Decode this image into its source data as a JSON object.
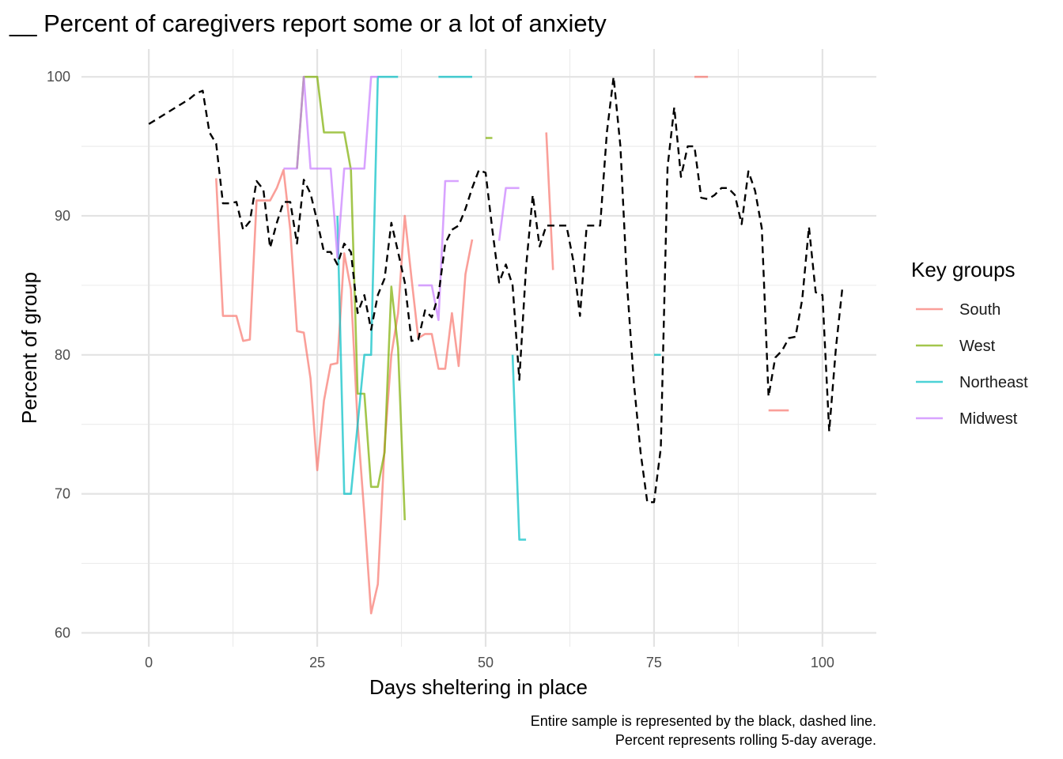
{
  "chart_data": {
    "type": "line",
    "title": "__ Percent of caregivers report some or a lot of anxiety",
    "xlabel": "Days sheltering in place",
    "ylabel": "Percent of group",
    "xlim": [
      -10,
      108
    ],
    "ylim": [
      59,
      102
    ],
    "x_ticks": [
      0,
      25,
      50,
      75,
      100
    ],
    "y_ticks": [
      60,
      70,
      80,
      90,
      100
    ],
    "grid": true,
    "legend": {
      "title": "Key groups",
      "position": "right",
      "entries": [
        "South",
        "West",
        "Northeast",
        "Midwest"
      ]
    },
    "caption": [
      "Entire sample is represented by the black, dashed line.",
      "Percent represents rolling 5-day average."
    ],
    "overall": {
      "color": "#000000",
      "dashed": true,
      "segments": [
        [
          [
            0,
            96.6
          ],
          [
            1,
            96.9
          ],
          [
            2,
            97.2
          ],
          [
            3,
            97.5
          ],
          [
            4,
            97.8
          ],
          [
            5,
            98.1
          ],
          [
            6,
            98.4
          ],
          [
            7,
            98.8
          ],
          [
            8,
            99.0
          ],
          [
            9,
            96.0
          ],
          [
            10,
            95.2
          ],
          [
            11,
            90.9
          ],
          [
            12,
            90.9
          ],
          [
            13,
            91.0
          ],
          [
            14,
            89.0
          ],
          [
            15,
            89.6
          ],
          [
            16,
            92.5
          ],
          [
            17,
            91.9
          ],
          [
            18,
            87.7
          ],
          [
            19,
            89.5
          ],
          [
            20,
            91.0
          ],
          [
            21,
            91.0
          ],
          [
            22,
            88.0
          ],
          [
            23,
            92.6
          ],
          [
            24,
            91.6
          ],
          [
            25,
            89.6
          ],
          [
            26,
            87.4
          ],
          [
            27,
            87.4
          ],
          [
            28,
            86.5
          ],
          [
            29,
            88.0
          ],
          [
            30,
            87.4
          ],
          [
            31,
            83.0
          ],
          [
            32,
            84.3
          ],
          [
            33,
            81.8
          ],
          [
            34,
            84.3
          ],
          [
            35,
            85.5
          ],
          [
            36,
            89.5
          ],
          [
            37,
            87.4
          ],
          [
            38,
            85.2
          ],
          [
            39,
            81.0
          ],
          [
            40,
            81.1
          ],
          [
            41,
            83.2
          ],
          [
            42,
            82.7
          ],
          [
            43,
            84.3
          ],
          [
            44,
            88.0
          ],
          [
            45,
            89.0
          ],
          [
            46,
            89.3
          ],
          [
            47,
            90.5
          ],
          [
            48,
            92.0
          ],
          [
            49,
            93.3
          ],
          [
            50,
            93.1
          ],
          [
            51,
            89.0
          ],
          [
            52,
            85.2
          ],
          [
            53,
            86.5
          ],
          [
            54,
            85.0
          ],
          [
            55,
            78.2
          ],
          [
            56,
            86.3
          ],
          [
            57,
            91.5
          ],
          [
            58,
            87.8
          ],
          [
            59,
            89.3
          ],
          [
            60,
            89.3
          ],
          [
            61,
            89.3
          ],
          [
            62,
            89.3
          ],
          [
            63,
            86.8
          ],
          [
            64,
            82.8
          ],
          [
            65,
            89.3
          ],
          [
            66,
            89.3
          ],
          [
            67,
            89.3
          ],
          [
            68,
            96.0
          ],
          [
            69,
            100.0
          ],
          [
            70,
            95.0
          ],
          [
            71,
            85.0
          ],
          [
            72,
            78.0
          ],
          [
            73,
            73.0
          ],
          [
            74,
            69.4
          ],
          [
            75,
            69.4
          ],
          [
            76,
            73.3
          ],
          [
            77,
            93.5
          ],
          [
            78,
            97.8
          ],
          [
            79,
            92.8
          ],
          [
            80,
            95.0
          ],
          [
            81,
            95.0
          ],
          [
            82,
            91.3
          ],
          [
            83,
            91.2
          ],
          [
            84,
            91.5
          ],
          [
            85,
            92.0
          ],
          [
            86,
            92.0
          ],
          [
            87,
            91.5
          ],
          [
            88,
            89.4
          ],
          [
            89,
            93.2
          ],
          [
            90,
            91.8
          ],
          [
            91,
            89.1
          ],
          [
            92,
            77.0
          ],
          [
            93,
            79.8
          ],
          [
            94,
            80.3
          ],
          [
            95,
            81.2
          ],
          [
            96,
            81.3
          ],
          [
            97,
            84.0
          ],
          [
            98,
            89.2
          ],
          [
            99,
            84.5
          ],
          [
            100,
            84.3
          ],
          [
            101,
            74.5
          ],
          [
            102,
            80.5
          ],
          [
            103,
            85.0
          ]
        ]
      ]
    },
    "series": [
      {
        "name": "South",
        "color": "#F8766D",
        "segments": [
          [
            [
              10,
              92.7
            ],
            [
              11,
              82.8
            ],
            [
              12,
              82.8
            ],
            [
              13,
              82.8
            ],
            [
              14,
              81.0
            ],
            [
              15,
              81.1
            ],
            [
              16,
              91.1
            ],
            [
              17,
              91.1
            ],
            [
              18,
              91.1
            ],
            [
              19,
              92.0
            ],
            [
              20,
              93.3
            ],
            [
              21,
              89.0
            ],
            [
              22,
              81.7
            ],
            [
              23,
              81.6
            ],
            [
              24,
              78.3
            ],
            [
              25,
              71.7
            ],
            [
              26,
              76.7
            ],
            [
              27,
              79.3
            ],
            [
              28,
              79.4
            ],
            [
              29,
              87.3
            ],
            [
              30,
              84.7
            ],
            [
              31,
              75.0
            ],
            [
              32,
              68.5
            ],
            [
              33,
              61.4
            ],
            [
              34,
              63.5
            ],
            [
              35,
              73.5
            ],
            [
              36,
              80.0
            ],
            [
              37,
              83.0
            ],
            [
              38,
              90.0
            ],
            [
              39,
              85.5
            ],
            [
              40,
              81.2
            ],
            [
              41,
              81.5
            ],
            [
              42,
              81.5
            ],
            [
              43,
              79.0
            ],
            [
              44,
              79.0
            ],
            [
              45,
              83.0
            ],
            [
              46,
              79.2
            ],
            [
              47,
              85.8
            ],
            [
              48,
              88.3
            ]
          ],
          [
            [
              59,
              96.0
            ],
            [
              60,
              86.1
            ]
          ],
          [
            [
              81,
              100.0
            ],
            [
              83,
              100.0
            ]
          ],
          [
            [
              92,
              76.0
            ],
            [
              95,
              76.0
            ]
          ]
        ]
      },
      {
        "name": "West",
        "color": "#7CAE00",
        "segments": [
          [
            [
              22,
              93.4
            ],
            [
              23,
              100.0
            ],
            [
              24,
              100.0
            ],
            [
              25,
              100.0
            ],
            [
              26,
              96.0
            ],
            [
              27,
              96.0
            ],
            [
              28,
              96.0
            ],
            [
              29,
              96.0
            ],
            [
              30,
              93.3
            ],
            [
              31,
              77.2
            ],
            [
              32,
              77.2
            ],
            [
              33,
              70.5
            ],
            [
              34,
              70.5
            ],
            [
              35,
              73.0
            ],
            [
              36,
              84.9
            ],
            [
              37,
              80.5
            ],
            [
              38,
              68.1
            ]
          ],
          [
            [
              50,
              95.6
            ],
            [
              51,
              95.6
            ]
          ]
        ]
      },
      {
        "name": "Northeast",
        "color": "#00BFC4",
        "segments": [
          [
            [
              28,
              90.0
            ],
            [
              29,
              70.0
            ],
            [
              30,
              70.0
            ],
            [
              31,
              75.0
            ],
            [
              32,
              80.0
            ],
            [
              33,
              80.0
            ],
            [
              34,
              100.0
            ],
            [
              35,
              100.0
            ],
            [
              36,
              100.0
            ],
            [
              37,
              100.0
            ]
          ],
          [
            [
              43,
              100.0
            ],
            [
              48,
              100.0
            ]
          ],
          [
            [
              54,
              80.0
            ],
            [
              55,
              66.7
            ],
            [
              56,
              66.7
            ]
          ],
          [
            [
              75,
              80.0
            ],
            [
              76,
              80.0
            ]
          ]
        ]
      },
      {
        "name": "Midwest",
        "color": "#C77CFF",
        "segments": [
          [
            [
              20,
              93.4
            ],
            [
              21,
              93.4
            ],
            [
              22,
              93.4
            ],
            [
              23,
              100.0
            ],
            [
              24,
              93.4
            ],
            [
              25,
              93.4
            ],
            [
              26,
              93.4
            ],
            [
              27,
              93.4
            ],
            [
              28,
              87.0
            ],
            [
              29,
              93.4
            ],
            [
              30,
              93.4
            ],
            [
              31,
              93.4
            ],
            [
              32,
              93.4
            ],
            [
              33,
              100.0
            ],
            [
              34,
              100.0
            ]
          ],
          [
            [
              40,
              85.0
            ],
            [
              41,
              85.0
            ],
            [
              42,
              85.0
            ],
            [
              43,
              82.5
            ],
            [
              44,
              92.5
            ],
            [
              45,
              92.5
            ],
            [
              46,
              92.5
            ]
          ],
          [
            [
              52,
              88.2
            ],
            [
              53,
              92.0
            ],
            [
              54,
              92.0
            ],
            [
              55,
              92.0
            ]
          ]
        ]
      }
    ]
  }
}
